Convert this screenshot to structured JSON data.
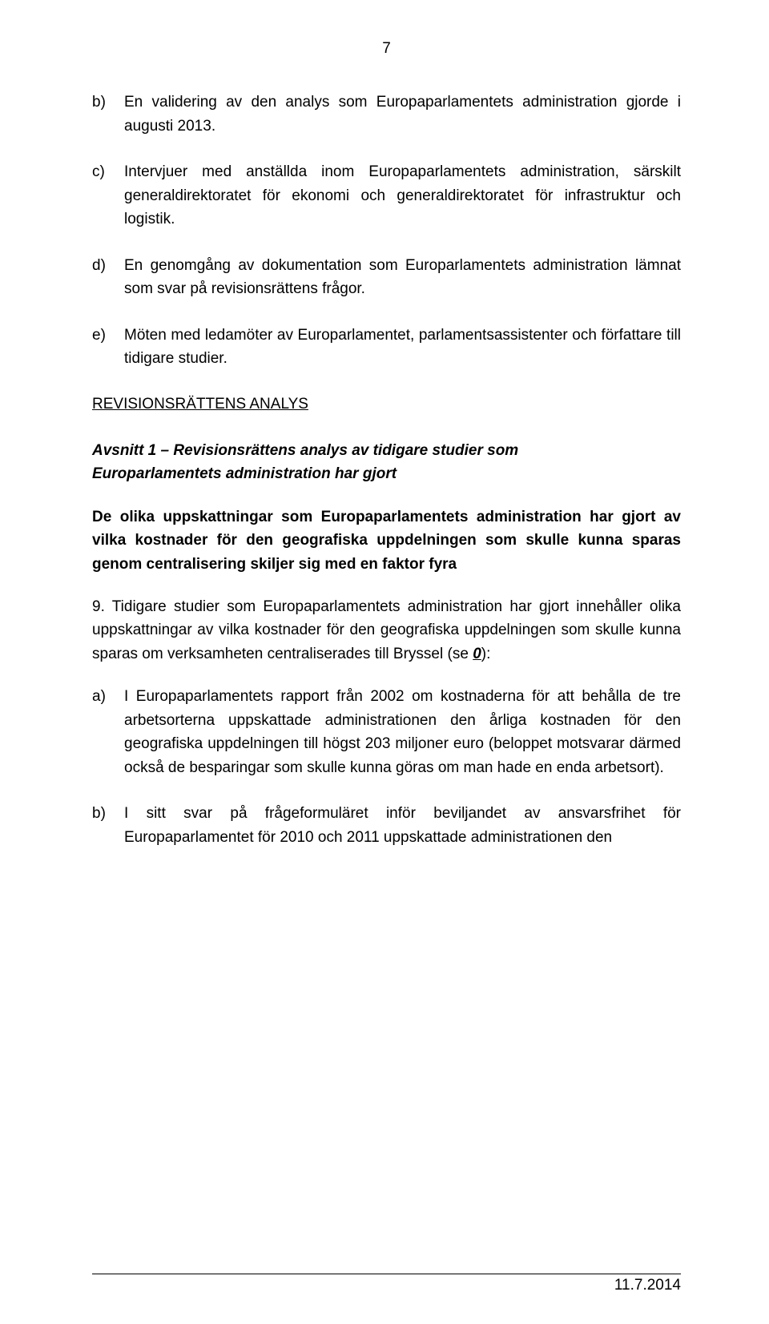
{
  "page_number": "7",
  "footer_date": "11.7.2014",
  "items": {
    "b": {
      "marker": "b)",
      "text": "En validering av den analys som Europaparlamentets administration gjorde i augusti 2013."
    },
    "c": {
      "marker": "c)",
      "text": "Intervjuer med anställda inom Europaparlamentets administration, särskilt generaldirektoratet för ekonomi och generaldirektoratet för infrastruktur och logistik."
    },
    "d": {
      "marker": "d)",
      "text": "En genomgång av dokumentation som Europarlamentets administration lämnat som svar på revisionsrättens frågor."
    },
    "e": {
      "marker": "e)",
      "text": "Möten med ledamöter av Europarlamentet, parlamentsassistenter och författare till tidigare studier."
    }
  },
  "section_heading": "REVISIONSRÄTTENS ANALYS",
  "subsection_line1": "Avsnitt 1 – Revisionsrättens analys av tidigare studier som",
  "subsection_line2": "Europarlamentets administration har gjort",
  "bold_para": "De olika uppskattningar som Europaparlamentets administration har gjort av vilka kostnader för den geografiska uppdelningen som skulle kunna sparas genom centralisering skiljer sig med en faktor fyra",
  "para9_before_ref": "9. Tidigare studier som Europaparlamentets administration har gjort innehåller olika uppskattningar av vilka kostnader för den geografiska uppdelningen som skulle kunna sparas om verksamheten centraliserades till Bryssel (se ",
  "para9_ref": "0",
  "para9_after_ref": "):",
  "sub_a": {
    "marker": "a)",
    "text": "I Europaparlamentets rapport från 2002 om kostnaderna för att behålla de tre arbetsorterna uppskattade administrationen den årliga kostnaden för den geografiska uppdelningen till högst 203 miljoner euro (beloppet motsvarar därmed också de besparingar som skulle kunna göras om man hade en enda arbetsort)."
  },
  "sub_b": {
    "marker": "b)",
    "text": "I sitt svar på frågeformuläret inför beviljandet av ansvarsfrihet för Europaparlamentet för 2010 och 2011 uppskattade administrationen den"
  }
}
